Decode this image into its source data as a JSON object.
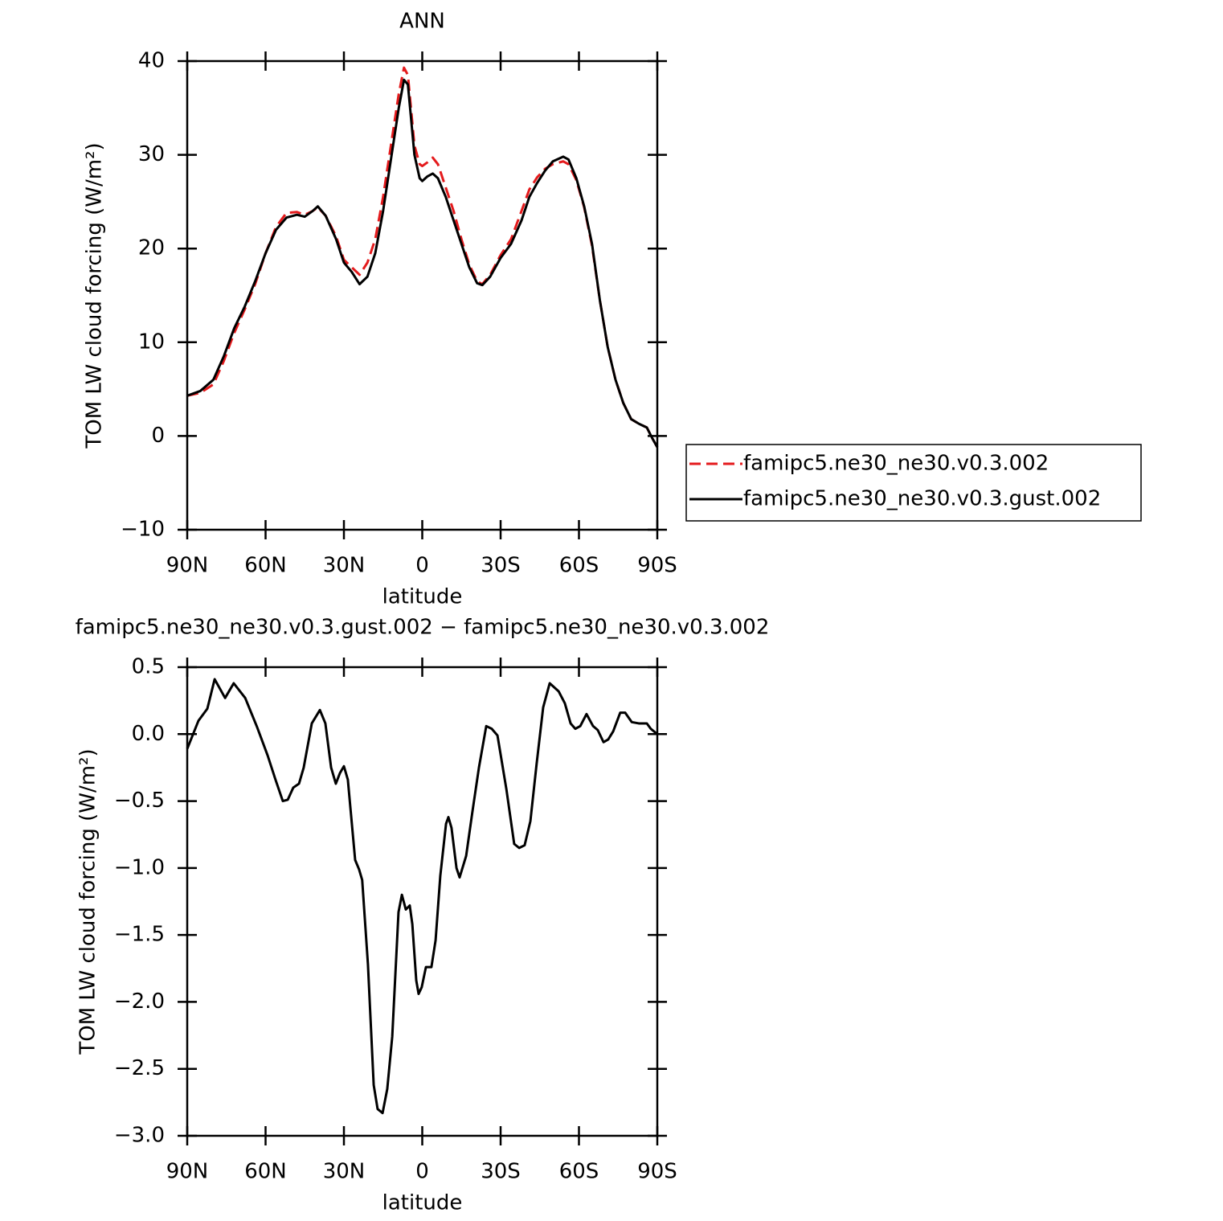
{
  "chart_data": [
    {
      "type": "line",
      "title": "ANN",
      "x_label": "latitude",
      "y_label": "TOM LW cloud forcing (W/m²)",
      "xlim": [
        90,
        -90
      ],
      "xticks": [
        {
          "value": 90,
          "label": "90N"
        },
        {
          "value": 60,
          "label": "60N"
        },
        {
          "value": 30,
          "label": "30N"
        },
        0,
        {
          "value": -30,
          "label": "30S"
        },
        {
          "value": -60,
          "label": "60S"
        },
        {
          "value": -90,
          "label": "90S"
        }
      ],
      "ylim": [
        -10,
        40
      ],
      "yticks": [
        {
          "value": -10,
          "label": "−10"
        },
        0,
        10,
        20,
        30,
        40
      ],
      "x": [
        90,
        85,
        80,
        76,
        72,
        68,
        64,
        60,
        56,
        52,
        48,
        45,
        42,
        40,
        37,
        33,
        30,
        27,
        24,
        21,
        18,
        15,
        12,
        9,
        7,
        5.5,
        4,
        3,
        1,
        0,
        -2,
        -4,
        -6,
        -9,
        -12,
        -15,
        -18,
        -21,
        -23,
        -26,
        -30,
        -34,
        -38,
        -41,
        -44,
        -47,
        -50,
        -54,
        -56,
        -59,
        -62,
        -65,
        -68,
        -71,
        -74,
        -77,
        -80,
        -83,
        -86,
        -88,
        -90
      ],
      "series": [
        {
          "name": "famipc5.ne30_ne30.v0.3.002",
          "color": "#e41a1c",
          "line_style": "dashed",
          "values": [
            4.3,
            4.6,
            5.5,
            8.0,
            11.0,
            13.5,
            16.2,
            19.5,
            22.3,
            23.8,
            23.9,
            23.6,
            24.0,
            24.4,
            23.5,
            21.3,
            18.8,
            18.0,
            17.2,
            18.5,
            21.0,
            25.5,
            31.0,
            36.5,
            39.3,
            38.5,
            34.0,
            31.0,
            29.0,
            28.8,
            29.2,
            29.7,
            29.0,
            26.5,
            24.0,
            21.0,
            18.3,
            16.5,
            16.2,
            17.2,
            19.3,
            21.0,
            24.0,
            26.3,
            27.6,
            28.5,
            29.0,
            29.3,
            29.0,
            27.3,
            24.4,
            20.3,
            14.5,
            9.5,
            6.0,
            3.5,
            1.8,
            1.3,
            0.9,
            -0.2,
            -1.2
          ]
        },
        {
          "name": "famipc5.ne30_ne30.v0.3.gust.002",
          "color": "#000000",
          "line_style": "solid",
          "values": [
            4.3,
            4.8,
            6.0,
            8.5,
            11.5,
            13.8,
            16.5,
            19.5,
            22.0,
            23.3,
            23.6,
            23.4,
            24.0,
            24.5,
            23.5,
            21.0,
            18.5,
            17.5,
            16.2,
            17.0,
            19.5,
            24.0,
            29.5,
            35.0,
            38.0,
            37.5,
            33.0,
            30.0,
            27.5,
            27.2,
            27.7,
            28.0,
            27.5,
            25.5,
            23.0,
            20.5,
            18.0,
            16.3,
            16.1,
            17.0,
            19.0,
            20.5,
            23.0,
            25.5,
            27.0,
            28.3,
            29.3,
            29.8,
            29.5,
            27.5,
            24.5,
            20.5,
            14.5,
            9.5,
            6.0,
            3.5,
            1.8,
            1.3,
            0.9,
            -0.2,
            -1.2
          ]
        }
      ]
    },
    {
      "type": "line",
      "title": "famipc5.ne30_ne30.v0.3.gust.002 − famipc5.ne30_ne30.v0.3.002",
      "x_label": "latitude",
      "y_label": "TOM LW cloud forcing (W/m²)",
      "xlim": [
        90,
        -90
      ],
      "xticks": [
        {
          "value": 90,
          "label": "90N"
        },
        {
          "value": 60,
          "label": "60N"
        },
        {
          "value": 30,
          "label": "30N"
        },
        0,
        {
          "value": -30,
          "label": "30S"
        },
        {
          "value": -60,
          "label": "60S"
        },
        {
          "value": -90,
          "label": "90S"
        }
      ],
      "ylim": [
        -3.0,
        0.5
      ],
      "yticks": [
        {
          "value": -3.0,
          "label": "−3.0"
        },
        {
          "value": -2.5,
          "label": "−2.5"
        },
        {
          "value": -2.0,
          "label": "−2.0"
        },
        {
          "value": -1.5,
          "label": "−1.5"
        },
        {
          "value": -1.0,
          "label": "−1.0"
        },
        {
          "value": -0.5,
          "label": "−0.5"
        },
        {
          "value": 0.0,
          "label": "0.0"
        },
        0.5
      ],
      "x": [
        90,
        85.7,
        82.3,
        79.5,
        75.5,
        72.2,
        67.8,
        63.2,
        59.2,
        56.2,
        53.4,
        51.5,
        49.4,
        47.2,
        45.4,
        42.3,
        39.2,
        37.1,
        34.9,
        33.1,
        31.5,
        30.0,
        28.5,
        25.7,
        24.2,
        23.0,
        20.8,
        18.6,
        17.1,
        15.2,
        13.4,
        11.5,
        9.1,
        7.8,
        6.3,
        4.8,
        3.8,
        2.3,
        1.4,
        0.2,
        -1.4,
        -3.5,
        -5.1,
        -6.9,
        -9.1,
        -10.0,
        -11.2,
        -13.1,
        -14.3,
        -16.8,
        -19.2,
        -21.7,
        -24.5,
        -26.6,
        -28.8,
        -32.2,
        -35.2,
        -37.1,
        -39.2,
        -41.4,
        -43.8,
        -46.3,
        -48.8,
        -52.2,
        -54.6,
        -56.8,
        -58.6,
        -60.5,
        -62.9,
        -65.4,
        -67.2,
        -69.4,
        -71.2,
        -73.1,
        -75.8,
        -77.7,
        -80.2,
        -82.9,
        -86.0,
        -87.5,
        -90
      ],
      "color": "#000000",
      "values": [
        -0.11,
        0.1,
        0.19,
        0.41,
        0.27,
        0.38,
        0.27,
        0.05,
        -0.16,
        -0.34,
        -0.5,
        -0.49,
        -0.4,
        -0.37,
        -0.25,
        0.08,
        0.18,
        0.08,
        -0.25,
        -0.37,
        -0.29,
        -0.24,
        -0.34,
        -0.94,
        -1.01,
        -1.09,
        -1.72,
        -2.62,
        -2.8,
        -2.83,
        -2.65,
        -2.26,
        -1.33,
        -1.2,
        -1.31,
        -1.28,
        -1.42,
        -1.84,
        -1.94,
        -1.89,
        -1.74,
        -1.74,
        -1.54,
        -1.06,
        -0.67,
        -0.62,
        -0.7,
        -1.0,
        -1.07,
        -0.91,
        -0.58,
        -0.25,
        0.06,
        0.04,
        -0.01,
        -0.41,
        -0.82,
        -0.85,
        -0.83,
        -0.65,
        -0.22,
        0.2,
        0.38,
        0.32,
        0.23,
        0.08,
        0.04,
        0.06,
        0.15,
        0.06,
        0.03,
        -0.06,
        -0.04,
        0.02,
        0.16,
        0.16,
        0.09,
        0.08,
        0.08,
        0.04,
        0.0
      ]
    }
  ]
}
